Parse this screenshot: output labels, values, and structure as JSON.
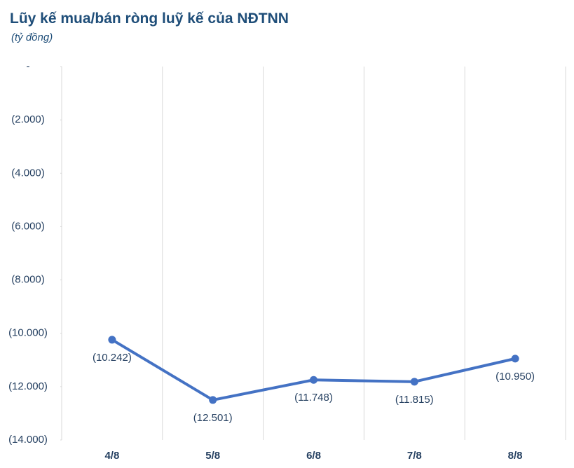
{
  "chart_data": {
    "type": "line",
    "title": "Lũy kế mua/bán ròng luỹ kế của NĐTNN",
    "subtitle": "(tỷ đồng)",
    "categories": [
      "4/8",
      "5/8",
      "6/8",
      "7/8",
      "8/8"
    ],
    "values": [
      -10242,
      -12501,
      -11748,
      -11815,
      -10950
    ],
    "value_labels": [
      "(10.242)",
      "(12.501)",
      "(11.748)",
      "(11.815)",
      "(10.950)"
    ],
    "color": "#4472c4",
    "ylim": [
      -14000,
      0
    ],
    "yticks": [
      {
        "value": 0,
        "label": "-"
      },
      {
        "value": -2000,
        "label": "(2.000)"
      },
      {
        "value": -4000,
        "label": "(4.000)"
      },
      {
        "value": -6000,
        "label": "(6.000)"
      },
      {
        "value": -8000,
        "label": "(8.000)"
      },
      {
        "value": -10000,
        "label": "(10.000)"
      },
      {
        "value": -12000,
        "label": "(12.000)"
      },
      {
        "value": -14000,
        "label": "(14.000)"
      }
    ],
    "grid": true
  }
}
